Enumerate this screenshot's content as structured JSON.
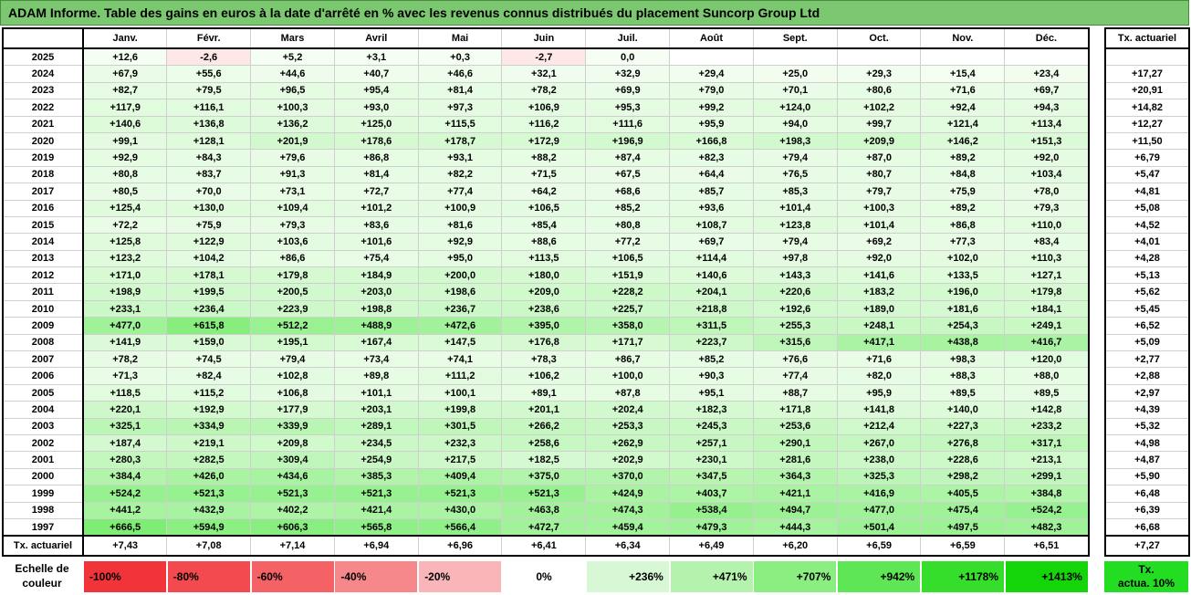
{
  "title": "ADAM Informe. Table des gains en euros à la date d'arrêté en % avec les revenus connus distribués du placement Suncorp Group Ltd",
  "months": [
    "Janv.",
    "Févr.",
    "Mars",
    "Avril",
    "Mai",
    "Juin",
    "Juil.",
    "Août",
    "Sept.",
    "Oct.",
    "Nov.",
    "Déc."
  ],
  "rate_header": "Tx. actuariel",
  "rows": [
    {
      "year": "2025",
      "cells": [
        "+12,6",
        "-2,6",
        "+5,2",
        "+3,1",
        "+0,3",
        "-2,7",
        "0,0",
        "",
        "",
        "",
        "",
        ""
      ],
      "rate": ""
    },
    {
      "year": "2024",
      "cells": [
        "+67,9",
        "+55,6",
        "+44,6",
        "+40,7",
        "+46,6",
        "+32,1",
        "+32,9",
        "+29,4",
        "+25,0",
        "+29,3",
        "+15,4",
        "+23,4"
      ],
      "rate": "+17,27"
    },
    {
      "year": "2023",
      "cells": [
        "+82,7",
        "+79,5",
        "+96,5",
        "+95,4",
        "+81,4",
        "+78,2",
        "+69,9",
        "+79,0",
        "+70,1",
        "+80,6",
        "+71,6",
        "+69,7"
      ],
      "rate": "+20,91"
    },
    {
      "year": "2022",
      "cells": [
        "+117,9",
        "+116,1",
        "+100,3",
        "+93,0",
        "+97,3",
        "+106,9",
        "+95,3",
        "+99,2",
        "+124,0",
        "+102,2",
        "+92,4",
        "+94,3"
      ],
      "rate": "+14,82"
    },
    {
      "year": "2021",
      "cells": [
        "+140,6",
        "+136,8",
        "+136,2",
        "+125,0",
        "+115,5",
        "+116,2",
        "+111,6",
        "+95,9",
        "+94,0",
        "+99,7",
        "+121,4",
        "+113,4"
      ],
      "rate": "+12,27"
    },
    {
      "year": "2020",
      "cells": [
        "+99,1",
        "+128,1",
        "+201,9",
        "+178,6",
        "+178,7",
        "+172,9",
        "+196,9",
        "+166,8",
        "+198,3",
        "+209,9",
        "+146,2",
        "+151,3"
      ],
      "rate": "+11,50"
    },
    {
      "year": "2019",
      "cells": [
        "+92,9",
        "+84,3",
        "+79,6",
        "+86,8",
        "+93,1",
        "+88,2",
        "+87,4",
        "+82,3",
        "+79,4",
        "+87,0",
        "+89,2",
        "+92,0"
      ],
      "rate": "+6,79"
    },
    {
      "year": "2018",
      "cells": [
        "+80,8",
        "+83,7",
        "+91,3",
        "+81,4",
        "+82,2",
        "+71,5",
        "+67,5",
        "+64,4",
        "+76,5",
        "+80,7",
        "+84,8",
        "+103,4"
      ],
      "rate": "+5,47"
    },
    {
      "year": "2017",
      "cells": [
        "+80,5",
        "+70,0",
        "+73,1",
        "+72,7",
        "+77,4",
        "+64,2",
        "+68,6",
        "+85,7",
        "+85,3",
        "+79,7",
        "+75,9",
        "+78,0"
      ],
      "rate": "+4,81"
    },
    {
      "year": "2016",
      "cells": [
        "+125,4",
        "+130,0",
        "+109,4",
        "+101,2",
        "+100,9",
        "+106,5",
        "+85,2",
        "+93,6",
        "+101,4",
        "+100,3",
        "+89,2",
        "+79,3"
      ],
      "rate": "+5,08"
    },
    {
      "year": "2015",
      "cells": [
        "+72,2",
        "+75,9",
        "+79,3",
        "+83,6",
        "+81,6",
        "+85,4",
        "+80,8",
        "+108,7",
        "+123,8",
        "+101,4",
        "+86,8",
        "+110,0"
      ],
      "rate": "+4,52"
    },
    {
      "year": "2014",
      "cells": [
        "+125,8",
        "+122,9",
        "+103,6",
        "+101,6",
        "+92,9",
        "+88,6",
        "+77,2",
        "+69,7",
        "+79,4",
        "+69,2",
        "+77,3",
        "+83,4"
      ],
      "rate": "+4,01"
    },
    {
      "year": "2013",
      "cells": [
        "+123,2",
        "+104,2",
        "+86,6",
        "+75,4",
        "+95,0",
        "+113,5",
        "+106,5",
        "+114,4",
        "+97,8",
        "+92,0",
        "+102,0",
        "+110,3"
      ],
      "rate": "+4,28"
    },
    {
      "year": "2012",
      "cells": [
        "+171,0",
        "+178,1",
        "+179,8",
        "+184,9",
        "+200,0",
        "+180,0",
        "+151,9",
        "+140,6",
        "+143,3",
        "+141,6",
        "+133,5",
        "+127,1"
      ],
      "rate": "+5,13"
    },
    {
      "year": "2011",
      "cells": [
        "+198,9",
        "+199,5",
        "+200,5",
        "+203,0",
        "+198,6",
        "+209,0",
        "+228,2",
        "+204,1",
        "+220,6",
        "+183,2",
        "+196,0",
        "+179,8"
      ],
      "rate": "+5,62"
    },
    {
      "year": "2010",
      "cells": [
        "+233,1",
        "+236,4",
        "+223,9",
        "+198,8",
        "+236,7",
        "+238,6",
        "+225,7",
        "+218,8",
        "+192,6",
        "+189,0",
        "+181,6",
        "+184,1"
      ],
      "rate": "+5,45"
    },
    {
      "year": "2009",
      "cells": [
        "+477,0",
        "+615,8",
        "+512,2",
        "+488,9",
        "+472,6",
        "+395,0",
        "+358,0",
        "+311,5",
        "+255,3",
        "+248,1",
        "+254,3",
        "+249,1"
      ],
      "rate": "+6,52"
    },
    {
      "year": "2008",
      "cells": [
        "+141,9",
        "+159,0",
        "+195,1",
        "+167,4",
        "+147,5",
        "+176,8",
        "+171,7",
        "+223,7",
        "+315,6",
        "+417,1",
        "+438,8",
        "+416,7"
      ],
      "rate": "+5,09"
    },
    {
      "year": "2007",
      "cells": [
        "+78,2",
        "+74,5",
        "+79,4",
        "+73,4",
        "+74,1",
        "+78,3",
        "+86,7",
        "+85,2",
        "+76,6",
        "+71,6",
        "+98,3",
        "+120,0"
      ],
      "rate": "+2,77"
    },
    {
      "year": "2006",
      "cells": [
        "+71,3",
        "+82,4",
        "+102,8",
        "+89,8",
        "+111,2",
        "+106,2",
        "+100,0",
        "+90,3",
        "+77,4",
        "+82,0",
        "+88,3",
        "+88,0"
      ],
      "rate": "+2,88"
    },
    {
      "year": "2005",
      "cells": [
        "+118,5",
        "+115,2",
        "+106,8",
        "+101,1",
        "+100,1",
        "+89,1",
        "+87,8",
        "+95,1",
        "+88,7",
        "+95,9",
        "+89,5",
        "+89,5"
      ],
      "rate": "+2,97"
    },
    {
      "year": "2004",
      "cells": [
        "+220,1",
        "+192,9",
        "+177,9",
        "+203,1",
        "+199,8",
        "+201,1",
        "+202,4",
        "+182,3",
        "+171,8",
        "+141,8",
        "+140,0",
        "+142,8"
      ],
      "rate": "+4,39"
    },
    {
      "year": "2003",
      "cells": [
        "+325,1",
        "+334,9",
        "+339,9",
        "+289,1",
        "+301,5",
        "+266,2",
        "+253,3",
        "+245,3",
        "+253,6",
        "+212,4",
        "+227,3",
        "+233,2"
      ],
      "rate": "+5,32"
    },
    {
      "year": "2002",
      "cells": [
        "+187,4",
        "+219,1",
        "+209,8",
        "+234,5",
        "+232,3",
        "+258,6",
        "+262,9",
        "+257,1",
        "+290,1",
        "+267,0",
        "+276,8",
        "+317,1"
      ],
      "rate": "+4,98"
    },
    {
      "year": "2001",
      "cells": [
        "+280,3",
        "+282,5",
        "+309,4",
        "+254,9",
        "+217,5",
        "+182,5",
        "+202,9",
        "+230,1",
        "+281,6",
        "+238,0",
        "+228,6",
        "+213,1"
      ],
      "rate": "+4,87"
    },
    {
      "year": "2000",
      "cells": [
        "+384,4",
        "+426,0",
        "+434,6",
        "+385,3",
        "+409,4",
        "+375,0",
        "+370,0",
        "+347,5",
        "+364,3",
        "+325,3",
        "+298,2",
        "+299,1"
      ],
      "rate": "+5,90"
    },
    {
      "year": "1999",
      "cells": [
        "+524,2",
        "+521,3",
        "+521,3",
        "+521,3",
        "+521,3",
        "+521,3",
        "+424,9",
        "+403,7",
        "+421,1",
        "+416,9",
        "+405,5",
        "+384,8"
      ],
      "rate": "+6,48"
    },
    {
      "year": "1998",
      "cells": [
        "+441,2",
        "+432,9",
        "+402,2",
        "+421,4",
        "+430,0",
        "+463,8",
        "+474,3",
        "+538,4",
        "+494,7",
        "+477,0",
        "+475,4",
        "+524,2"
      ],
      "rate": "+6,39"
    },
    {
      "year": "1997",
      "cells": [
        "+666,5",
        "+594,9",
        "+606,3",
        "+565,8",
        "+566,4",
        "+472,7",
        "+459,4",
        "+479,3",
        "+444,3",
        "+501,4",
        "+497,5",
        "+482,3"
      ],
      "rate": "+6,68"
    }
  ],
  "footer": {
    "label": "Tx. actuariel",
    "cells": [
      "+7,43",
      "+7,08",
      "+7,14",
      "+6,94",
      "+6,96",
      "+6,41",
      "+6,34",
      "+6,49",
      "+6,20",
      "+6,59",
      "+6,59",
      "+6,51"
    ],
    "rate": "+7,27"
  },
  "legend": {
    "label_line1": "Echelle de",
    "label_line2": "couleur",
    "items": [
      {
        "text": "-100%",
        "color": "#f0343a",
        "kind": "neg"
      },
      {
        "text": "-80%",
        "color": "#f24a4f",
        "kind": "neg"
      },
      {
        "text": "-60%",
        "color": "#f46266",
        "kind": "neg"
      },
      {
        "text": "-40%",
        "color": "#f6878a",
        "kind": "neg"
      },
      {
        "text": "-20%",
        "color": "#f9b5b7",
        "kind": "neg"
      },
      {
        "text": "0%",
        "color": "#ffffff",
        "kind": "zero"
      },
      {
        "text": "+236%",
        "color": "#d8f8d5",
        "kind": "pos"
      },
      {
        "text": "+471%",
        "color": "#b4f2ad",
        "kind": "pos"
      },
      {
        "text": "+707%",
        "color": "#8aee80",
        "kind": "pos"
      },
      {
        "text": "+942%",
        "color": "#5ee654",
        "kind": "pos"
      },
      {
        "text": "+1178%",
        "color": "#36de2c",
        "kind": "pos"
      },
      {
        "text": "+1413%",
        "color": "#14d40a",
        "kind": "pos"
      }
    ],
    "rate_line1": "Tx.",
    "rate_line2": "actua. 10%"
  },
  "colors": {
    "title_bg": "#7cc870",
    "negative_cell": "#fde7e7",
    "rate_legend": "#22dd22"
  }
}
